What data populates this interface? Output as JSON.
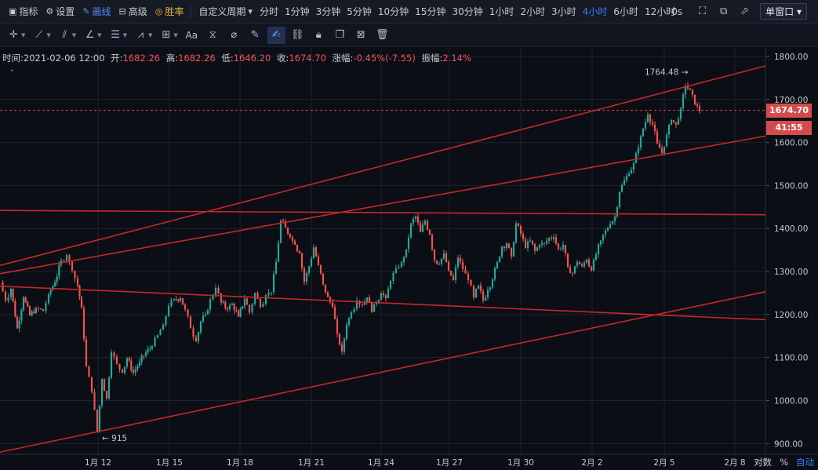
{
  "topbar": {
    "left": [
      {
        "name": "indicators",
        "icon": "chart-icon",
        "label": "指标"
      },
      {
        "name": "settings",
        "icon": "gear-icon",
        "label": "设置"
      },
      {
        "name": "drawing",
        "icon": "pen-icon",
        "label": "画线",
        "active": true
      },
      {
        "name": "advanced",
        "icon": "grid-icon",
        "label": "高级"
      },
      {
        "name": "win-rate",
        "icon": "coin-icon",
        "label": "胜率",
        "gold": true
      }
    ],
    "custom_period_label": "自定义周期",
    "periods": [
      "分时",
      "1分钟",
      "3分钟",
      "5分钟",
      "10分钟",
      "15分钟",
      "30分钟",
      "1小时",
      "2小时",
      "3小时",
      "4小时",
      "6小时",
      "12小时"
    ],
    "active_period": "4小时",
    "countdown": "0s",
    "window_mode": "单窗口"
  },
  "info_bar": {
    "time_label": "时间:",
    "time": "2021-02-06 12:00",
    "open_label": "开:",
    "open": "1682.26",
    "high_label": "高:",
    "high": "1682.26",
    "low_label": "低:",
    "low": "1646.20",
    "close_label": "收:",
    "close": "1674.70",
    "change_label": "涨幅:",
    "change": "-0.45%(-7.55)",
    "amplitude_label": "振幅:",
    "amplitude": "2.14%"
  },
  "chart_data": {
    "type": "candlestick",
    "y_ticks": [
      "1800.00",
      "1700.00",
      "1600.00",
      "1500.00",
      "1400.00",
      "1300.00",
      "1200.00",
      "1100.00",
      "1000.00",
      "900.00"
    ],
    "ylim": [
      875,
      1820
    ],
    "x_ticks": [
      "1月 12",
      "1月 15",
      "1月 18",
      "1月 21",
      "1月 24",
      "1月 27",
      "1月 30",
      "2月 2",
      "2月 5",
      "2月 8"
    ],
    "current_price": "1674.70",
    "countdown_tag": "41:55",
    "high_annotation": "1764.48 →",
    "low_annotation": "← 915",
    "colors": {
      "up": "#26a69a",
      "down": "#ef5350",
      "trendline": "#c62828",
      "background": "#0b0e14",
      "grid": "#1c2230"
    },
    "candle_path": [
      [
        0,
        1275
      ],
      [
        7,
        1232
      ],
      [
        14,
        1260
      ],
      [
        22,
        1168
      ],
      [
        30,
        1240
      ],
      [
        38,
        1198
      ],
      [
        46,
        1215
      ],
      [
        55,
        1208
      ],
      [
        62,
        1248
      ],
      [
        70,
        1275
      ],
      [
        78,
        1326
      ],
      [
        85,
        1338
      ],
      [
        92,
        1302
      ],
      [
        99,
        1268
      ],
      [
        104,
        1215
      ],
      [
        110,
        1080
      ],
      [
        117,
        1020
      ],
      [
        124,
        928
      ],
      [
        130,
        1050
      ],
      [
        136,
        1005
      ],
      [
        142,
        1112
      ],
      [
        149,
        1085
      ],
      [
        156,
        1065
      ],
      [
        162,
        1098
      ],
      [
        170,
        1065
      ],
      [
        178,
        1090
      ],
      [
        186,
        1112
      ],
      [
        194,
        1126
      ],
      [
        201,
        1152
      ],
      [
        208,
        1176
      ],
      [
        215,
        1220
      ],
      [
        222,
        1236
      ],
      [
        230,
        1238
      ],
      [
        236,
        1212
      ],
      [
        243,
        1168
      ],
      [
        250,
        1138
      ],
      [
        256,
        1184
      ],
      [
        262,
        1200
      ],
      [
        268,
        1235
      ],
      [
        275,
        1262
      ],
      [
        282,
        1228
      ],
      [
        290,
        1212
      ],
      [
        296,
        1225
      ],
      [
        304,
        1195
      ],
      [
        312,
        1237
      ],
      [
        318,
        1205
      ],
      [
        325,
        1250
      ],
      [
        332,
        1218
      ],
      [
        339,
        1245
      ],
      [
        346,
        1252
      ],
      [
        352,
        1322
      ],
      [
        358,
        1418
      ],
      [
        364,
        1402
      ],
      [
        370,
        1380
      ],
      [
        376,
        1362
      ],
      [
        382,
        1342
      ],
      [
        388,
        1276
      ],
      [
        394,
        1312
      ],
      [
        400,
        1356
      ],
      [
        406,
        1315
      ],
      [
        412,
        1270
      ],
      [
        418,
        1240
      ],
      [
        424,
        1218
      ],
      [
        430,
        1155
      ],
      [
        436,
        1114
      ],
      [
        442,
        1176
      ],
      [
        448,
        1205
      ],
      [
        455,
        1232
      ],
      [
        462,
        1222
      ],
      [
        468,
        1240
      ],
      [
        474,
        1206
      ],
      [
        480,
        1228
      ],
      [
        486,
        1250
      ],
      [
        492,
        1238
      ],
      [
        498,
        1278
      ],
      [
        505,
        1308
      ],
      [
        512,
        1322
      ],
      [
        518,
        1352
      ],
      [
        524,
        1412
      ],
      [
        530,
        1428
      ],
      [
        536,
        1392
      ],
      [
        542,
        1418
      ],
      [
        548,
        1386
      ],
      [
        554,
        1326
      ],
      [
        560,
        1318
      ],
      [
        566,
        1342
      ],
      [
        572,
        1302
      ],
      [
        578,
        1280
      ],
      [
        584,
        1332
      ],
      [
        590,
        1305
      ],
      [
        597,
        1280
      ],
      [
        604,
        1240
      ],
      [
        610,
        1268
      ],
      [
        616,
        1232
      ],
      [
        622,
        1258
      ],
      [
        628,
        1282
      ],
      [
        634,
        1322
      ],
      [
        640,
        1358
      ],
      [
        646,
        1365
      ],
      [
        652,
        1335
      ],
      [
        658,
        1412
      ],
      [
        664,
        1388
      ],
      [
        670,
        1355
      ],
      [
        676,
        1372
      ],
      [
        682,
        1348
      ],
      [
        688,
        1362
      ],
      [
        694,
        1365
      ],
      [
        700,
        1378
      ],
      [
        706,
        1380
      ],
      [
        712,
        1352
      ],
      [
        718,
        1362
      ],
      [
        724,
        1310
      ],
      [
        730,
        1296
      ],
      [
        736,
        1322
      ],
      [
        742,
        1312
      ],
      [
        748,
        1328
      ],
      [
        754,
        1302
      ],
      [
        760,
        1340
      ],
      [
        766,
        1372
      ],
      [
        772,
        1395
      ],
      [
        778,
        1410
      ],
      [
        784,
        1428
      ],
      [
        790,
        1485
      ],
      [
        796,
        1512
      ],
      [
        802,
        1528
      ],
      [
        808,
        1552
      ],
      [
        814,
        1588
      ],
      [
        820,
        1632
      ],
      [
        826,
        1665
      ],
      [
        832,
        1642
      ],
      [
        838,
        1598
      ],
      [
        844,
        1575
      ],
      [
        850,
        1618
      ],
      [
        856,
        1652
      ],
      [
        862,
        1642
      ],
      [
        868,
        1680
      ],
      [
        874,
        1732
      ],
      [
        880,
        1722
      ],
      [
        886,
        1688
      ],
      [
        892,
        1674
      ]
    ],
    "trendlines": [
      {
        "from": [
          0,
          1266
        ],
        "to": [
          976,
          1188
        ]
      },
      {
        "from": [
          0,
          1442
        ],
        "to": [
          976,
          1432
        ]
      },
      {
        "from": [
          0,
          1314
        ],
        "to": [
          976,
          1778
        ]
      },
      {
        "from": [
          0,
          1295
        ],
        "to": [
          976,
          1615
        ]
      },
      {
        "from": [
          0,
          880
        ],
        "to": [
          976,
          1253
        ]
      }
    ],
    "vgrid_x": [
      125,
      216,
      306,
      397,
      486,
      573,
      664,
      755,
      847,
      937
    ]
  },
  "bottom": {
    "log_label": "对数",
    "percent_label": "%",
    "auto_label": "自动"
  }
}
